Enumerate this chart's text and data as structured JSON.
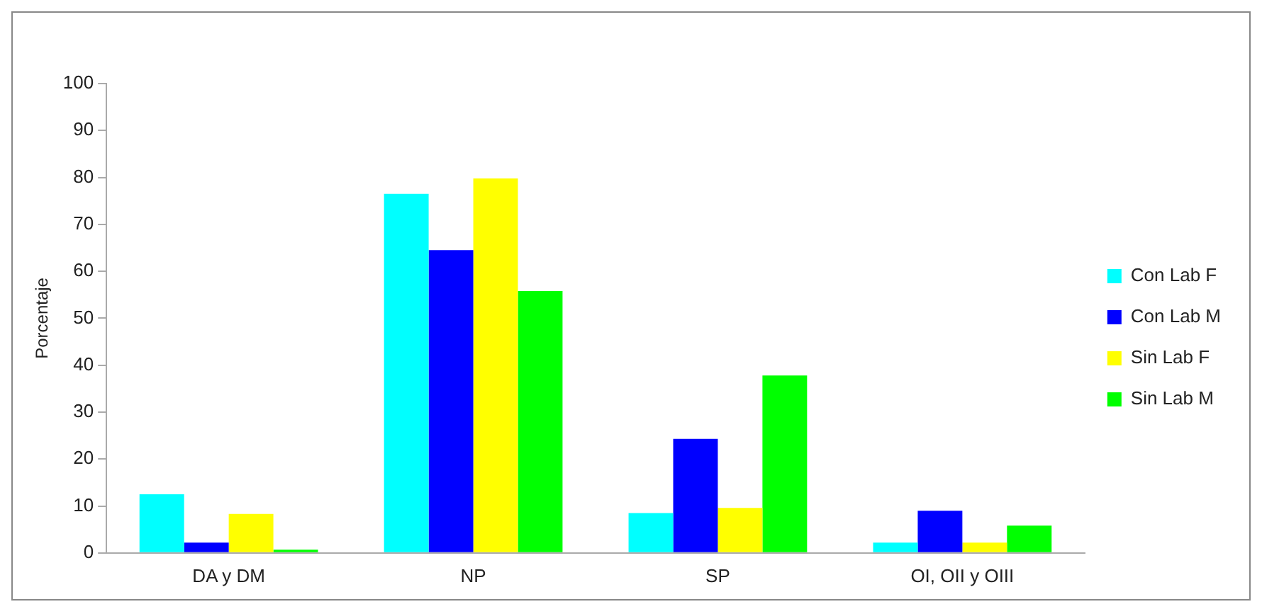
{
  "chart_data": {
    "type": "bar",
    "ylabel": "Porcentaje",
    "categories": [
      "DA y DM",
      "NP",
      "SP",
      "OI, OII y OIII"
    ],
    "series": [
      {
        "name": "Con Lab F",
        "color": "#00ffff",
        "values": [
          12.5,
          76.5,
          8.5,
          2.2
        ]
      },
      {
        "name": "Con Lab M",
        "color": "#0000ff",
        "values": [
          2.2,
          64.5,
          24.3,
          9
        ]
      },
      {
        "name": "Sin Lab F",
        "color": "#ffff00",
        "values": [
          8.3,
          79.8,
          9.6,
          2.2
        ]
      },
      {
        "name": "Sin Lab M",
        "color": "#00ff00",
        "values": [
          0.7,
          55.8,
          37.8,
          5.8
        ]
      }
    ],
    "ylim": [
      0,
      100
    ],
    "yticks": [
      0,
      10,
      20,
      30,
      40,
      50,
      60,
      70,
      80,
      90,
      100
    ],
    "grid": false,
    "legend": "right"
  }
}
